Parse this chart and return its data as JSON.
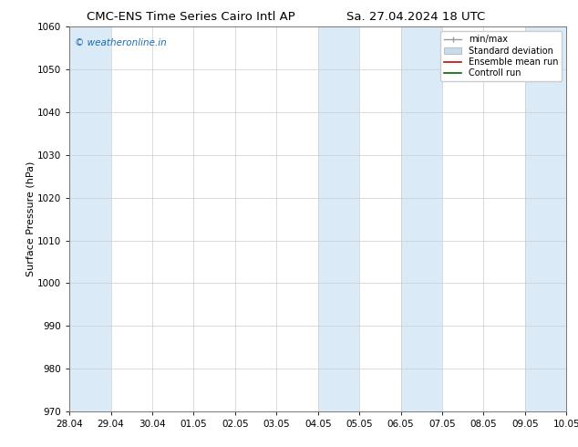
{
  "title": "CMC-ENS Time Series Cairo Intl AP",
  "title2": "Sa. 27.04.2024 18 UTC",
  "ylabel": "Surface Pressure (hPa)",
  "ylim": [
    970,
    1060
  ],
  "yticks": [
    970,
    980,
    990,
    1000,
    1010,
    1020,
    1030,
    1040,
    1050,
    1060
  ],
  "xtick_labels": [
    "28.04",
    "29.04",
    "30.04",
    "01.05",
    "02.05",
    "03.05",
    "04.05",
    "05.05",
    "06.05",
    "07.05",
    "08.05",
    "09.05",
    "10.05"
  ],
  "xtick_positions": [
    0,
    1,
    2,
    3,
    4,
    5,
    6,
    7,
    8,
    9,
    10,
    11,
    12
  ],
  "shaded_bands": [
    {
      "x_start": 0,
      "x_end": 1,
      "color": "#daeaf7"
    },
    {
      "x_start": 6,
      "x_end": 7,
      "color": "#daeaf7"
    },
    {
      "x_start": 8,
      "x_end": 9,
      "color": "#daeaf7"
    },
    {
      "x_start": 11,
      "x_end": 12,
      "color": "#daeaf7"
    }
  ],
  "watermark_text": "© weatheronline.in",
  "watermark_color": "#1a6bb5",
  "legend_labels": [
    "min/max",
    "Standard deviation",
    "Ensemble mean run",
    "Controll run"
  ],
  "background_color": "#ffffff",
  "title_fontsize": 9.5,
  "axis_fontsize": 8,
  "tick_fontsize": 7.5
}
